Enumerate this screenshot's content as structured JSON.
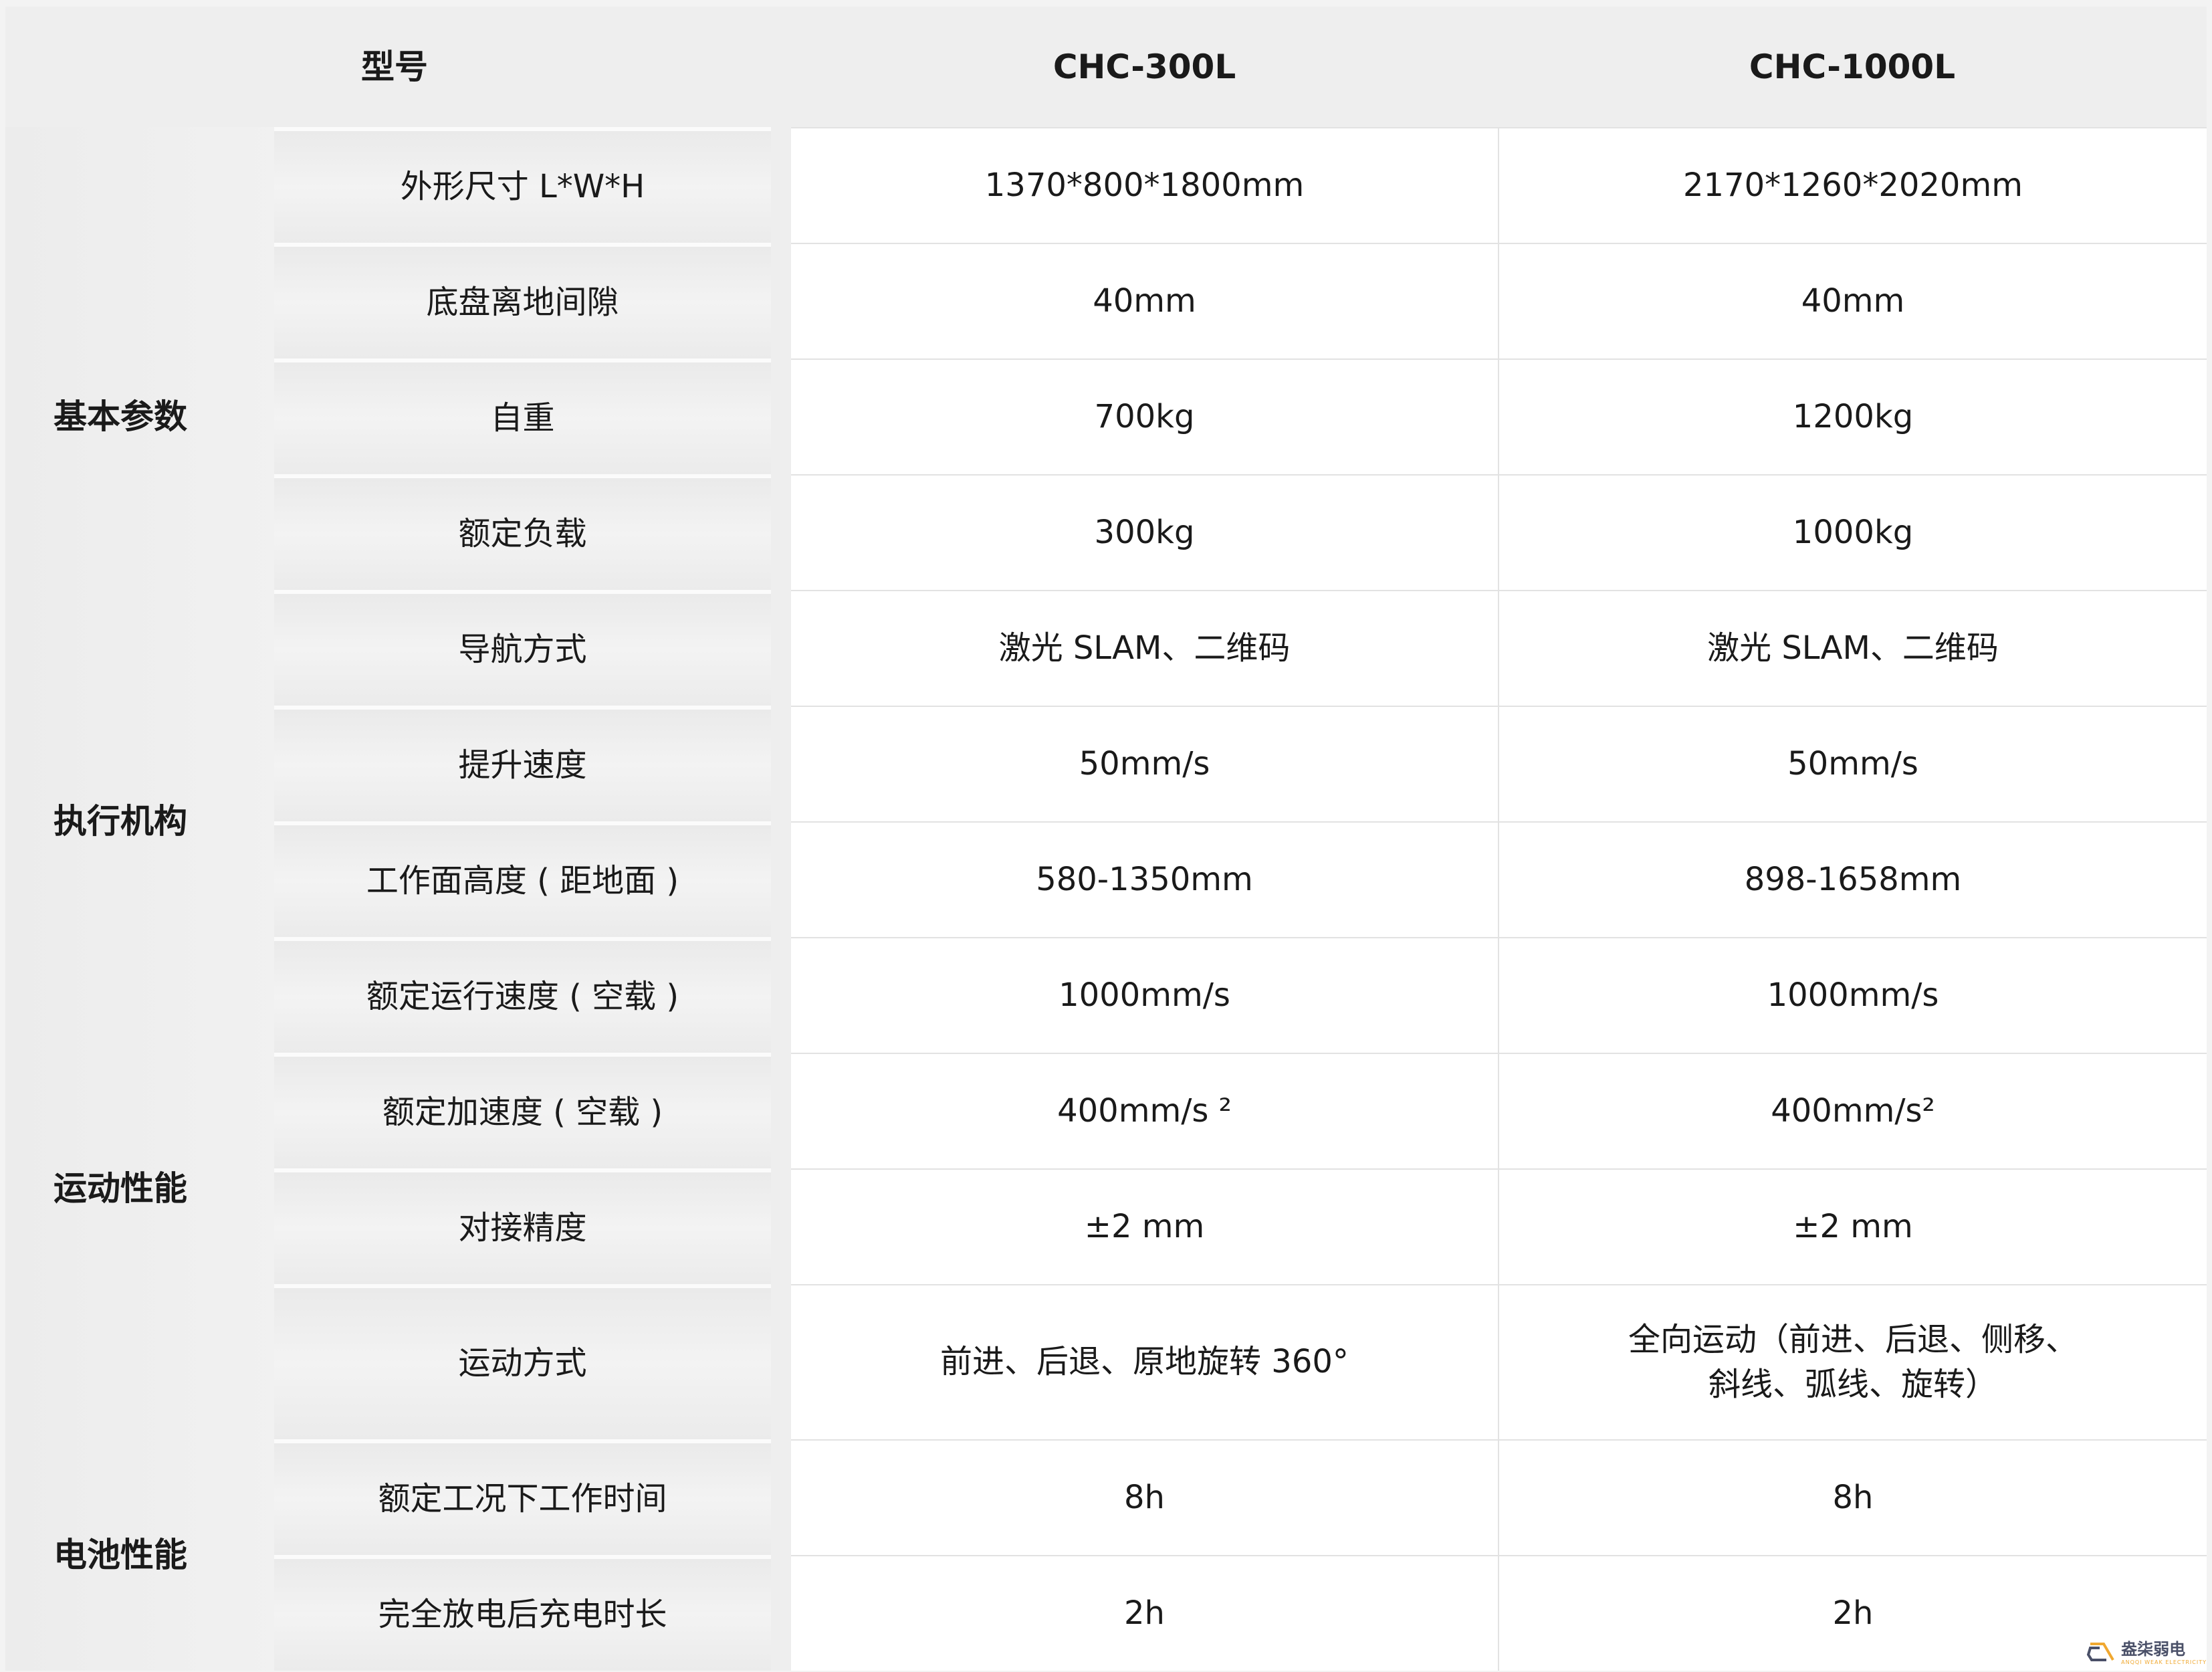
{
  "header": {
    "model_label": "型号",
    "models": [
      "CHC-300L",
      "CHC-1000L"
    ]
  },
  "categories": [
    {
      "label": "基本参数",
      "row_start": 2,
      "row_span": 5
    },
    {
      "label": "执行机构",
      "row_start": 7,
      "row_span": 2
    },
    {
      "label": "运动性能",
      "row_start": 9,
      "row_span": 4
    },
    {
      "label": "电池性能",
      "row_start": 13,
      "row_span": 2
    }
  ],
  "rows": [
    {
      "param": "外形尺寸 L*W*H",
      "v1": "1370*800*1800mm",
      "v2": "2170*1260*2020mm"
    },
    {
      "param": "底盘离地间隙",
      "v1": "40mm",
      "v2": "40mm"
    },
    {
      "param": "自重",
      "v1": "700kg",
      "v2": "1200kg"
    },
    {
      "param": "额定负载",
      "v1": "300kg",
      "v2": "1000kg"
    },
    {
      "param": "导航方式",
      "v1": "激光 SLAM、二维码",
      "v2": "激光 SLAM、二维码"
    },
    {
      "param": "提升速度",
      "v1": "50mm/s",
      "v2": "50mm/s"
    },
    {
      "param": "工作面高度 ( 距地面 )",
      "v1": "580-1350mm",
      "v2": "898-1658mm"
    },
    {
      "param": "额定运行速度 ( 空载 )",
      "v1": "1000mm/s",
      "v2": "1000mm/s"
    },
    {
      "param": "额定加速度 ( 空载 )",
      "v1": "400mm/s ²",
      "v2": "400mm/s²"
    },
    {
      "param": "对接精度",
      "v1": "±2 mm",
      "v2": "±2 mm"
    },
    {
      "param": "运动方式",
      "v1": "前进、后退、原地旋转 360°",
      "v2": "全向运动（前进、后退、侧移、\n斜线、弧线、旋转）"
    },
    {
      "param": "额定工况下工作时间",
      "v1": "8h",
      "v2": "8h"
    },
    {
      "param": "完全放电后充电时长",
      "v1": "2h",
      "v2": "2h"
    }
  ],
  "watermark": {
    "name": "盎柒弱电",
    "subtitle": "ANQQI WEAK ELECTRICITY",
    "colors": [
      "#f0a830",
      "#4a5068"
    ]
  }
}
